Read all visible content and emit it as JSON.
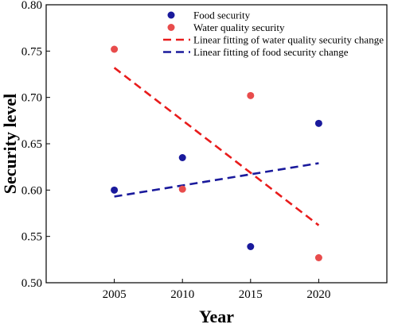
{
  "chart_data": {
    "type": "scatter",
    "xlabel": "Year",
    "ylabel": "Security level",
    "xlim": [
      2000,
      2025
    ],
    "ylim": [
      0.5,
      0.8
    ],
    "x_ticks": [
      2005,
      2010,
      2015,
      2020
    ],
    "y_ticks": [
      0.5,
      0.55,
      0.6,
      0.65,
      0.7,
      0.75,
      0.8
    ],
    "y_tick_labels": [
      "0.50",
      "0.55",
      "0.60",
      "0.65",
      "0.70",
      "0.75",
      "0.80"
    ],
    "grid": false,
    "legend_position": "top-right",
    "series": [
      {
        "name": "Food security",
        "kind": "scatter",
        "color": "#1a1a9c",
        "x": [
          2005,
          2010,
          2015,
          2020
        ],
        "y": [
          0.6,
          0.635,
          0.539,
          0.672
        ]
      },
      {
        "name": "Water quality security",
        "kind": "scatter",
        "color": "#e84c4c",
        "x": [
          2005,
          2010,
          2015,
          2020
        ],
        "y": [
          0.752,
          0.601,
          0.702,
          0.527
        ]
      },
      {
        "name": "Linear fitting of water quality security change",
        "kind": "line",
        "dash": true,
        "color": "#e81c1c",
        "x": [
          2005,
          2020
        ],
        "y": [
          0.732,
          0.562
        ]
      },
      {
        "name": "Linear fitting of food security change",
        "kind": "line",
        "dash": true,
        "color": "#1a1a9c",
        "x": [
          2005,
          2020
        ],
        "y": [
          0.593,
          0.629
        ]
      }
    ]
  }
}
